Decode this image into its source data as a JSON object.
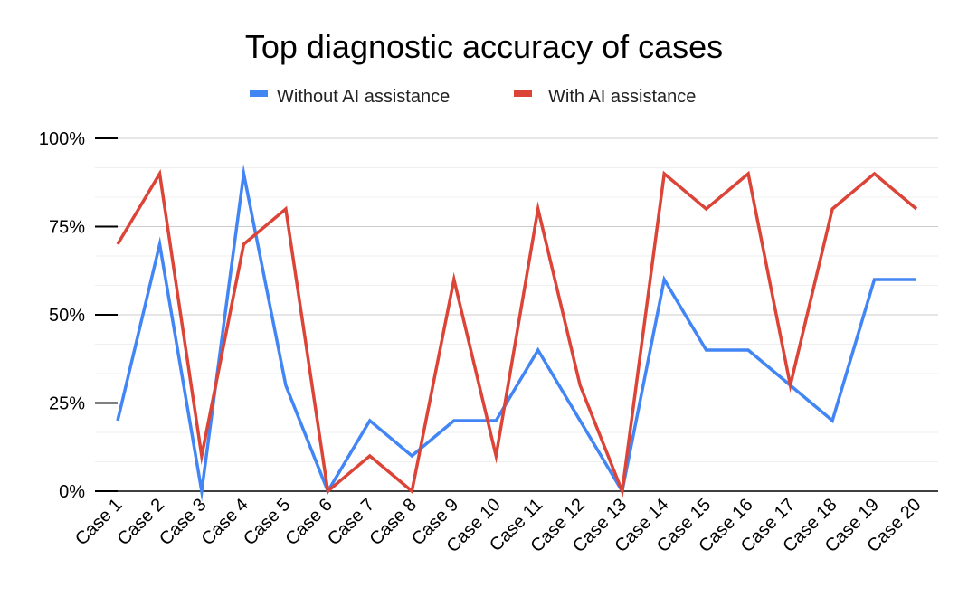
{
  "chart_data": {
    "type": "line",
    "title": "Top diagnostic accuracy of cases",
    "xlabel": "",
    "ylabel": "",
    "ylim": [
      0,
      100
    ],
    "categories": [
      "Case 1",
      "Case 2",
      "Case 3",
      "Case 4",
      "Case 5",
      "Case 6",
      "Case 7",
      "Case 8",
      "Case 9",
      "Case 10",
      "Case 11",
      "Case 12",
      "Case 13",
      "Case 14",
      "Case 15",
      "Case 16",
      "Case 17",
      "Case 18",
      "Case 19",
      "Case 20"
    ],
    "y_ticks": [
      {
        "value": 0,
        "label": "0%"
      },
      {
        "value": 25,
        "label": "25%"
      },
      {
        "value": 50,
        "label": "50%"
      },
      {
        "value": 75,
        "label": "75%"
      },
      {
        "value": 100,
        "label": "100%"
      }
    ],
    "minor_gridlines": [
      8.33,
      16.67,
      33.33,
      41.67,
      58.33,
      66.67,
      83.33,
      91.67
    ],
    "legend_position": "top",
    "series": [
      {
        "name": "Without AI assistance",
        "color": "#4285F4",
        "values": [
          20,
          70,
          0,
          90,
          30,
          0,
          20,
          10,
          20,
          20,
          40,
          20,
          0,
          60,
          40,
          40,
          30,
          20,
          60,
          60
        ]
      },
      {
        "name": "With AI assistance",
        "color": "#DB4437",
        "values": [
          70,
          90,
          10,
          70,
          80,
          0,
          10,
          0,
          60,
          10,
          80,
          30,
          0,
          90,
          80,
          90,
          30,
          80,
          90,
          80
        ]
      }
    ]
  }
}
